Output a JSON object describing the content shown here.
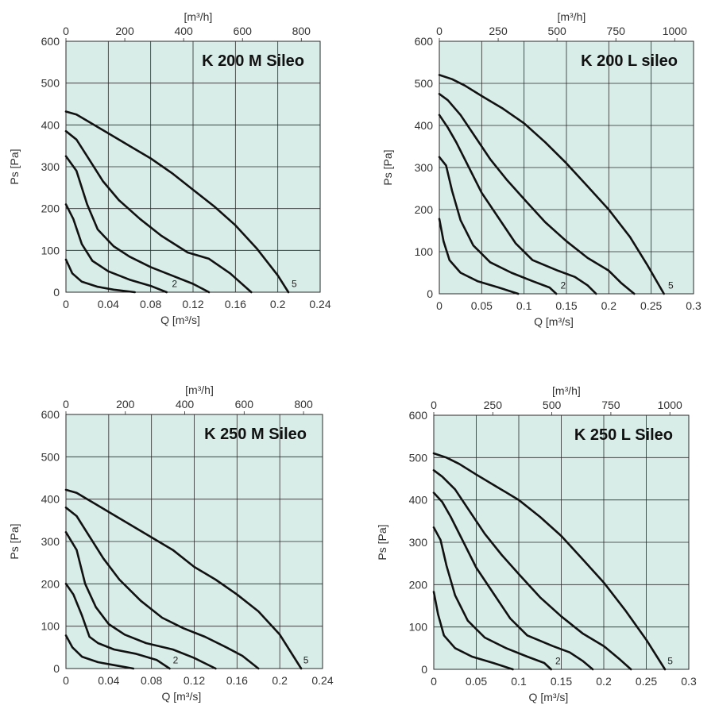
{
  "chart_data": [
    {
      "type": "line",
      "title": "K 200 M Sileo",
      "xlabel": "Q [m³/s]",
      "ylabel": "Ps [Pa]",
      "x2label": "[m³/h]",
      "xlim": [
        0,
        0.24
      ],
      "ylim": [
        0,
        600
      ],
      "x_ticks": [
        "0",
        "0.04",
        "0.08",
        "0.12",
        "0.16",
        "0.2",
        "0.24"
      ],
      "x_tick_values": [
        0,
        0.04,
        0.08,
        0.12,
        0.16,
        0.2,
        0.24
      ],
      "x2_ticks": [
        "0",
        "200",
        "400",
        "600",
        "800"
      ],
      "x2_tick_values": [
        0,
        200,
        400,
        600,
        800
      ],
      "x2_per_x": 3600,
      "y_ticks": [
        "0",
        "100",
        "200",
        "300",
        "400",
        "500",
        "600"
      ],
      "grid": true,
      "curve_labels": [
        {
          "text": "2",
          "x": 0.1,
          "y": 20
        },
        {
          "text": "5",
          "x": 0.213,
          "y": 20
        }
      ],
      "series": [
        {
          "x": [
            0,
            0.006,
            0.015,
            0.03,
            0.045,
            0.065
          ],
          "y": [
            78,
            45,
            25,
            13,
            6,
            0
          ]
        },
        {
          "x": [
            0,
            0.007,
            0.015,
            0.025,
            0.04,
            0.06,
            0.08,
            0.095
          ],
          "y": [
            210,
            175,
            115,
            75,
            50,
            30,
            15,
            0
          ]
        },
        {
          "x": [
            0,
            0.01,
            0.02,
            0.03,
            0.045,
            0.06,
            0.08,
            0.1,
            0.12,
            0.135
          ],
          "y": [
            325,
            290,
            210,
            150,
            110,
            85,
            60,
            40,
            20,
            0
          ]
        },
        {
          "x": [
            0,
            0.01,
            0.02,
            0.035,
            0.05,
            0.07,
            0.09,
            0.115,
            0.135,
            0.155,
            0.175
          ],
          "y": [
            385,
            365,
            325,
            265,
            220,
            175,
            135,
            95,
            80,
            45,
            0
          ]
        },
        {
          "x": [
            0,
            0.01,
            0.02,
            0.04,
            0.06,
            0.08,
            0.1,
            0.12,
            0.14,
            0.16,
            0.18,
            0.2,
            0.21
          ],
          "y": [
            432,
            425,
            410,
            380,
            350,
            320,
            285,
            245,
            205,
            160,
            105,
            40,
            0
          ]
        }
      ]
    },
    {
      "type": "line",
      "title": "K 200 L sileo",
      "xlabel": "Q [m³/s]",
      "ylabel": "Ps [Pa]",
      "x2label": "[m³/h]",
      "xlim": [
        0,
        0.3
      ],
      "ylim": [
        0,
        600
      ],
      "x_ticks": [
        "0",
        "0.05",
        "0.1",
        "0.15",
        "0.2",
        "0.25",
        "0.3"
      ],
      "x_tick_values": [
        0,
        0.05,
        0.1,
        0.15,
        0.2,
        0.25,
        0.3
      ],
      "x2_ticks": [
        "0",
        "250",
        "500",
        "750",
        "1000"
      ],
      "x2_tick_values": [
        0,
        250,
        500,
        750,
        1000
      ],
      "x2_per_x": 3600,
      "y_ticks": [
        "0",
        "100",
        "200",
        "300",
        "400",
        "500",
        "600"
      ],
      "grid": true,
      "curve_labels": [
        {
          "text": "2",
          "x": 0.143,
          "y": 20
        },
        {
          "text": "5",
          "x": 0.27,
          "y": 20
        }
      ],
      "series": [
        {
          "x": [
            0,
            0.005,
            0.012,
            0.025,
            0.045,
            0.07,
            0.093
          ],
          "y": [
            178,
            125,
            80,
            50,
            30,
            15,
            0
          ]
        },
        {
          "x": [
            0,
            0.008,
            0.015,
            0.025,
            0.04,
            0.06,
            0.085,
            0.11,
            0.13,
            0.138
          ],
          "y": [
            325,
            305,
            245,
            175,
            115,
            75,
            50,
            30,
            15,
            0
          ]
        },
        {
          "x": [
            0,
            0.01,
            0.02,
            0.035,
            0.05,
            0.07,
            0.09,
            0.11,
            0.14,
            0.16,
            0.175,
            0.185
          ],
          "y": [
            425,
            395,
            360,
            300,
            240,
            180,
            120,
            80,
            55,
            40,
            20,
            0
          ]
        },
        {
          "x": [
            0,
            0.01,
            0.025,
            0.04,
            0.06,
            0.08,
            0.1,
            0.125,
            0.15,
            0.175,
            0.2,
            0.215,
            0.23
          ],
          "y": [
            475,
            460,
            425,
            380,
            320,
            270,
            225,
            170,
            125,
            85,
            55,
            25,
            0
          ]
        },
        {
          "x": [
            0,
            0.015,
            0.03,
            0.05,
            0.075,
            0.1,
            0.125,
            0.15,
            0.175,
            0.2,
            0.225,
            0.245,
            0.265
          ],
          "y": [
            520,
            510,
            495,
            470,
            440,
            405,
            360,
            310,
            255,
            200,
            135,
            70,
            0
          ]
        }
      ]
    },
    {
      "type": "line",
      "title": "K 250 M Sileo",
      "xlabel": "Q [m³/s]",
      "ylabel": "Ps [Pa]",
      "x2label": "[m³/h]",
      "xlim": [
        0,
        0.24
      ],
      "ylim": [
        0,
        600
      ],
      "x_ticks": [
        "0",
        "0.04",
        "0.08",
        "0.12",
        "0.16",
        "0.2",
        "0.24"
      ],
      "x_tick_values": [
        0,
        0.04,
        0.08,
        0.12,
        0.16,
        0.2,
        0.24
      ],
      "x2_ticks": [
        "0",
        "200",
        "400",
        "600",
        "800"
      ],
      "x2_tick_values": [
        0,
        200,
        400,
        600,
        800
      ],
      "x2_per_x": 3600,
      "y_ticks": [
        "0",
        "100",
        "200",
        "300",
        "400",
        "500",
        "600"
      ],
      "grid": true,
      "curve_labels": [
        {
          "text": "2",
          "x": 0.1,
          "y": 20
        },
        {
          "text": "5",
          "x": 0.222,
          "y": 20
        }
      ],
      "series": [
        {
          "x": [
            0,
            0.006,
            0.015,
            0.03,
            0.045,
            0.063
          ],
          "y": [
            78,
            50,
            28,
            15,
            8,
            0
          ]
        },
        {
          "x": [
            0,
            0.007,
            0.015,
            0.022,
            0.03,
            0.045,
            0.065,
            0.085,
            0.097
          ],
          "y": [
            200,
            175,
            125,
            75,
            60,
            45,
            35,
            20,
            0
          ]
        },
        {
          "x": [
            0,
            0.01,
            0.018,
            0.028,
            0.04,
            0.055,
            0.075,
            0.1,
            0.12,
            0.14
          ],
          "y": [
            322,
            280,
            200,
            145,
            105,
            80,
            60,
            45,
            25,
            0
          ]
        },
        {
          "x": [
            0,
            0.01,
            0.02,
            0.035,
            0.05,
            0.07,
            0.09,
            0.11,
            0.13,
            0.15,
            0.165,
            0.18
          ],
          "y": [
            380,
            360,
            320,
            260,
            210,
            160,
            120,
            95,
            75,
            50,
            30,
            0
          ]
        },
        {
          "x": [
            0,
            0.01,
            0.02,
            0.04,
            0.06,
            0.08,
            0.1,
            0.12,
            0.14,
            0.16,
            0.18,
            0.2,
            0.22
          ],
          "y": [
            422,
            415,
            400,
            370,
            340,
            310,
            280,
            240,
            210,
            175,
            135,
            80,
            0
          ]
        }
      ]
    },
    {
      "type": "line",
      "title": "K 250 L Sileo",
      "xlabel": "Q [m³/s]",
      "ylabel": "Ps [Pa]",
      "x2label": "[m³/h]",
      "xlim": [
        0,
        0.3
      ],
      "ylim": [
        0,
        600
      ],
      "x_ticks": [
        "0",
        "0.05",
        "0.1",
        "0.15",
        "0.2",
        "0.25",
        "0.3"
      ],
      "x_tick_values": [
        0,
        0.05,
        0.1,
        0.15,
        0.2,
        0.25,
        0.3
      ],
      "x2_ticks": [
        "0",
        "250",
        "500",
        "750",
        "1000"
      ],
      "x2_tick_values": [
        0,
        250,
        500,
        750,
        1000
      ],
      "x2_per_x": 3600,
      "y_ticks": [
        "0",
        "100",
        "200",
        "300",
        "400",
        "500",
        "600"
      ],
      "grid": true,
      "curve_labels": [
        {
          "text": "2",
          "x": 0.143,
          "y": 20
        },
        {
          "text": "5",
          "x": 0.275,
          "y": 20
        }
      ],
      "series": [
        {
          "x": [
            0,
            0.005,
            0.012,
            0.025,
            0.045,
            0.07,
            0.093
          ],
          "y": [
            183,
            130,
            80,
            50,
            30,
            15,
            0
          ]
        },
        {
          "x": [
            0,
            0.008,
            0.015,
            0.025,
            0.04,
            0.06,
            0.085,
            0.11,
            0.13,
            0.138
          ],
          "y": [
            335,
            305,
            245,
            175,
            115,
            75,
            50,
            30,
            15,
            0
          ]
        },
        {
          "x": [
            0,
            0.01,
            0.02,
            0.035,
            0.05,
            0.07,
            0.09,
            0.11,
            0.14,
            0.16,
            0.175,
            0.187
          ],
          "y": [
            417,
            395,
            360,
            300,
            240,
            180,
            120,
            80,
            55,
            40,
            20,
            0
          ]
        },
        {
          "x": [
            0,
            0.01,
            0.025,
            0.04,
            0.06,
            0.08,
            0.1,
            0.125,
            0.15,
            0.175,
            0.2,
            0.218,
            0.232
          ],
          "y": [
            470,
            455,
            425,
            380,
            320,
            270,
            225,
            170,
            125,
            85,
            55,
            25,
            0
          ]
        },
        {
          "x": [
            0,
            0.015,
            0.03,
            0.05,
            0.075,
            0.1,
            0.125,
            0.15,
            0.175,
            0.2,
            0.225,
            0.25,
            0.272
          ],
          "y": [
            510,
            500,
            485,
            460,
            430,
            400,
            360,
            315,
            260,
            205,
            140,
            70,
            0
          ]
        }
      ]
    }
  ]
}
